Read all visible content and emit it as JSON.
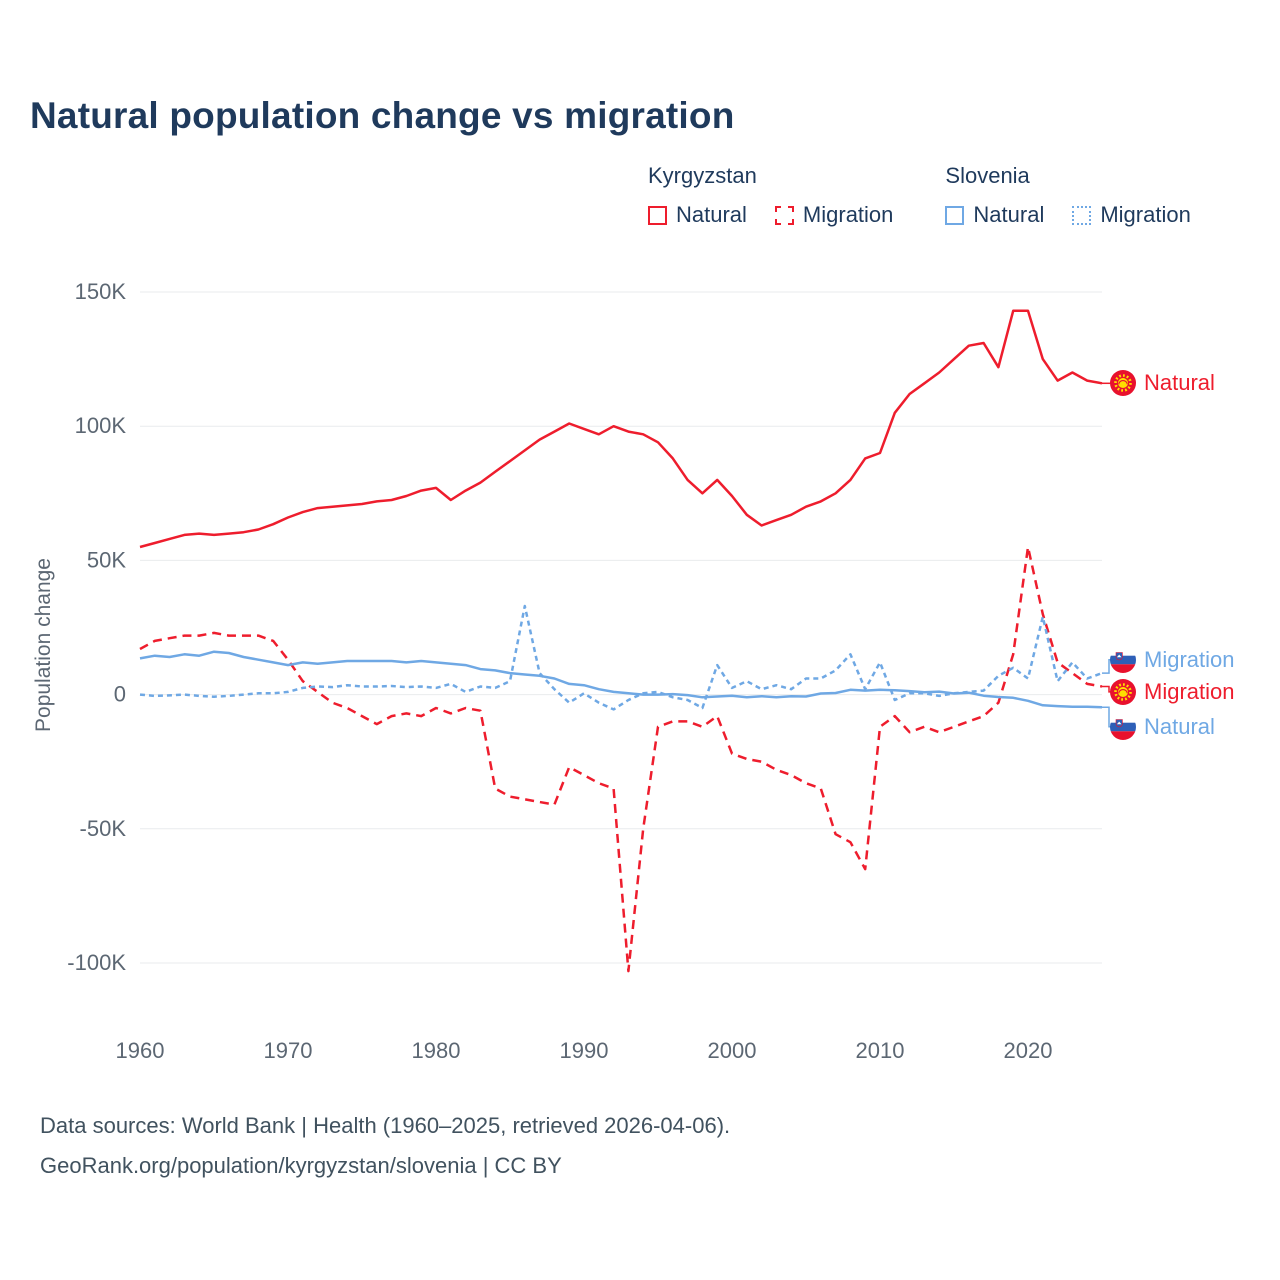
{
  "title": "Natural population change vs migration",
  "legend": {
    "groups": [
      {
        "country": "Kyrgyzstan",
        "items": [
          {
            "label": "Natural",
            "style": "solid-red"
          },
          {
            "label": "Migration",
            "style": "dashed-red"
          }
        ]
      },
      {
        "country": "Slovenia",
        "items": [
          {
            "label": "Natural",
            "style": "solid-blue"
          },
          {
            "label": "Migration",
            "style": "dotted-blue"
          }
        ]
      }
    ]
  },
  "colors": {
    "kyrgyzstan_line": "#ee1d2d",
    "slovenia_line": "#6fa8e4",
    "title_text": "#1f3a5c",
    "axis_text": "#5c6773",
    "grid": "#e9ebed",
    "footer_text": "#41525f",
    "kyrgyzstan_flag_red": "#e8112d",
    "kyrgyzstan_flag_yellow": "#ffde00",
    "slovenia_flag_blue": "#2e5fb7",
    "slovenia_flag_red": "#e8112d"
  },
  "chart_data": {
    "type": "line",
    "title": "Natural population change vs migration",
    "xlabel": "",
    "ylabel": "Population change",
    "values_in": "thousands of persons",
    "x_range": [
      1960,
      2025
    ],
    "ylim_thousands": [
      -100,
      150
    ],
    "grid": true,
    "legend_position": "top-right",
    "axis_text_color": "#5c6773",
    "grid_color": "#e9ebed",
    "yticks": [
      {
        "value": 150,
        "label": "150K"
      },
      {
        "value": 100,
        "label": "100K"
      },
      {
        "value": 50,
        "label": "50K"
      },
      {
        "value": 0,
        "label": "0"
      },
      {
        "value": -50,
        "label": "-50K"
      },
      {
        "value": -100,
        "label": "-100K"
      }
    ],
    "xticks": [
      1960,
      1970,
      1980,
      1990,
      2000,
      2010,
      2020
    ],
    "series": [
      {
        "id": "kg_natural",
        "name": "Kyrgyzstan Natural",
        "color": "#ee1d2d",
        "line": "solid",
        "dash": "none",
        "values": [
          55,
          56.5,
          58,
          59.5,
          60,
          59.5,
          60,
          60.5,
          61.5,
          63.5,
          66,
          68,
          69.5,
          70,
          70.5,
          71,
          72,
          72.5,
          74,
          76,
          77,
          72.5,
          76,
          79,
          83,
          87,
          91,
          95,
          98,
          101,
          99,
          97,
          100,
          98,
          97,
          94,
          88,
          80,
          75,
          80,
          74,
          67,
          63,
          65,
          67,
          70,
          72,
          75,
          80,
          88,
          90,
          105,
          112,
          116,
          120,
          125,
          130,
          131,
          122,
          143,
          143,
          125,
          117,
          120,
          117,
          116
        ]
      },
      {
        "id": "kg_migration",
        "name": "Kyrgyzstan Migration",
        "color": "#ee1d2d",
        "line": "dashed",
        "dash": "9 6",
        "values": [
          17,
          20,
          21,
          22,
          22,
          23,
          22,
          22,
          22,
          20,
          13,
          5,
          1,
          -3,
          -5,
          -8,
          -11,
          -8,
          -7,
          -8,
          -5,
          -7,
          -5,
          -6,
          -35,
          -38,
          -39,
          -40,
          -41,
          -27,
          -30,
          -33,
          -35,
          -103,
          -50,
          -12,
          -10,
          -10,
          -12,
          -8,
          -22,
          -24,
          -25,
          -28,
          -30,
          -33,
          -35,
          -52,
          -55,
          -65,
          -12,
          -8,
          -14,
          -12,
          -14,
          -12,
          -10,
          -8,
          -3,
          15,
          55,
          30,
          12,
          8,
          4,
          3
        ]
      },
      {
        "id": "si_natural",
        "name": "Slovenia Natural",
        "color": "#6fa8e4",
        "line": "solid",
        "dash": "none",
        "values": [
          13.5,
          14.5,
          14,
          15,
          14.5,
          16,
          15.5,
          14,
          13,
          12,
          11,
          12,
          11.5,
          12,
          12.5,
          12.5,
          12.5,
          12.5,
          12,
          12.5,
          12,
          11.5,
          11,
          9.5,
          9,
          8,
          7.5,
          7,
          6,
          4,
          3.5,
          2,
          1,
          0.5,
          0,
          0,
          0.2,
          -0.2,
          -1,
          -0.7,
          -0.4,
          -1,
          -0.6,
          -1,
          -0.6,
          -0.7,
          0.4,
          0.6,
          1.8,
          1.5,
          1.8,
          1.6,
          1.3,
          0.9,
          1.1,
          0.4,
          0.7,
          -0.4,
          -0.9,
          -1.2,
          -2.3,
          -4,
          -4.3,
          -4.5,
          -4.5,
          -4.7
        ]
      },
      {
        "id": "si_migration",
        "name": "Slovenia Migration",
        "color": "#6fa8e4",
        "line": "dashed",
        "dash": "5 4",
        "values": [
          0,
          -0.5,
          -0.3,
          0,
          -0.5,
          -0.8,
          -0.5,
          0,
          0.5,
          0.5,
          1,
          2.5,
          3,
          2.8,
          3.5,
          3,
          3,
          3.2,
          2.8,
          3,
          2.5,
          4,
          1,
          3,
          2.5,
          5,
          33,
          8,
          2,
          -3,
          0.5,
          -3,
          -5.5,
          -2,
          0.5,
          1,
          -1,
          -2,
          -5,
          11,
          2.5,
          5,
          2,
          3.5,
          2,
          6,
          6,
          9,
          15,
          2,
          12,
          -2,
          0.5,
          0.5,
          -0.5,
          0.5,
          1,
          1.5,
          7,
          10,
          6,
          29,
          5,
          12,
          6,
          8
        ]
      }
    ]
  },
  "end_labels": [
    {
      "series": "kg_natural",
      "label": "Natural",
      "flag": "kyrgyzstan",
      "color": "#ee1d2d",
      "y_value": 116
    },
    {
      "series": "si_migration",
      "label": "Migration",
      "flag": "slovenia",
      "color": "#6fa8e4",
      "y_value": 13
    },
    {
      "series": "kg_migration",
      "label": "Migration",
      "flag": "kyrgyzstan",
      "color": "#ee1d2d",
      "y_value": 1
    },
    {
      "series": "si_natural",
      "label": "Natural",
      "flag": "slovenia",
      "color": "#6fa8e4",
      "y_value": -12
    }
  ],
  "footer": {
    "line1": "Data sources: World Bank | Health (1960–2025, retrieved 2026-04-06).",
    "line2": "GeoRank.org/population/kyrgyzstan/slovenia | CC BY"
  }
}
